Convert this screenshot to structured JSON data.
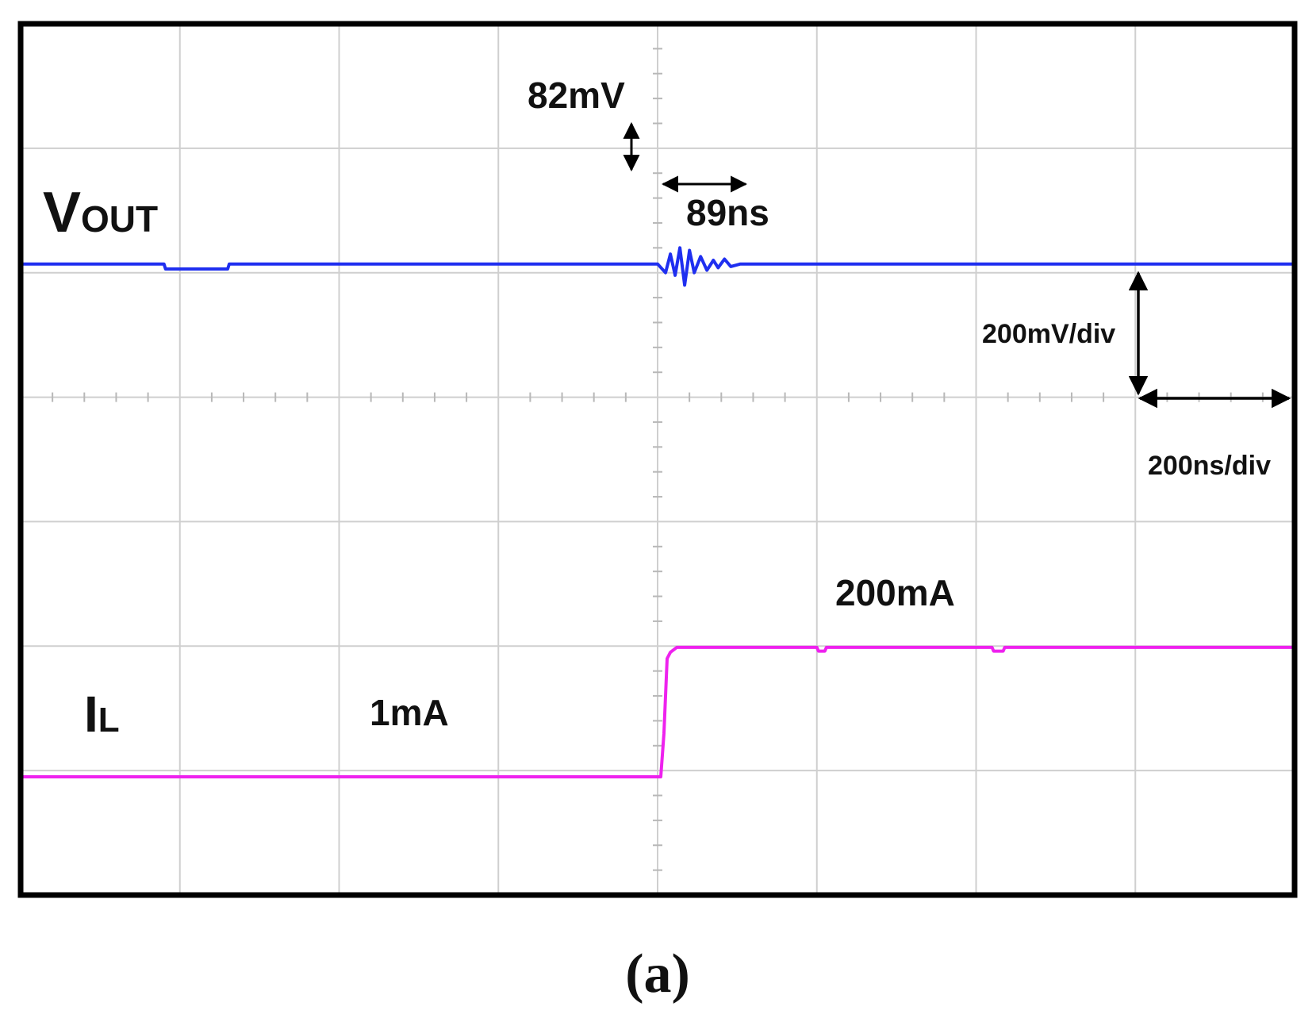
{
  "chart_data": {
    "type": "line",
    "x_divisions": 8,
    "y_divisions": 7,
    "grid": true,
    "background_color": "#ffffff",
    "grid_color": "#cfcfcf",
    "series": [
      {
        "name": "VOUT",
        "color": "#1f2ff0",
        "unit": "div",
        "points": [
          [
            0.0,
            5.07
          ],
          [
            0.9,
            5.07
          ],
          [
            0.91,
            5.03
          ],
          [
            1.3,
            5.03
          ],
          [
            1.31,
            5.07
          ],
          [
            4.0,
            5.07
          ],
          [
            4.05,
            5.0
          ],
          [
            4.08,
            5.15
          ],
          [
            4.11,
            4.98
          ],
          [
            4.14,
            5.2
          ],
          [
            4.17,
            4.9
          ],
          [
            4.2,
            5.18
          ],
          [
            4.23,
            5.0
          ],
          [
            4.27,
            5.13
          ],
          [
            4.31,
            5.02
          ],
          [
            4.35,
            5.1
          ],
          [
            4.38,
            5.04
          ],
          [
            4.42,
            5.11
          ],
          [
            4.46,
            5.05
          ],
          [
            4.52,
            5.07
          ],
          [
            8.0,
            5.07
          ]
        ]
      },
      {
        "name": "IL",
        "color": "#ee22ee",
        "unit": "div",
        "points": [
          [
            0.0,
            0.95
          ],
          [
            4.02,
            0.95
          ],
          [
            4.04,
            1.3
          ],
          [
            4.06,
            1.9
          ],
          [
            4.08,
            1.95
          ],
          [
            4.12,
            1.99
          ],
          [
            5.0,
            1.99
          ],
          [
            5.01,
            1.96
          ],
          [
            5.05,
            1.96
          ],
          [
            5.06,
            1.99
          ],
          [
            6.1,
            1.99
          ],
          [
            6.11,
            1.96
          ],
          [
            6.17,
            1.96
          ],
          [
            6.18,
            1.99
          ],
          [
            8.0,
            1.99
          ]
        ]
      }
    ],
    "annotations": {
      "vout_label_main": "V",
      "vout_label_sub": "OUT",
      "il_label_main": "I",
      "il_label_sub": "L",
      "overshoot": "82mV",
      "settling": "89ns",
      "il_low": "1mA",
      "il_high": "200mA",
      "v_scale": "200mV/div",
      "t_scale": "200ns/div"
    },
    "caption": "(a)"
  }
}
